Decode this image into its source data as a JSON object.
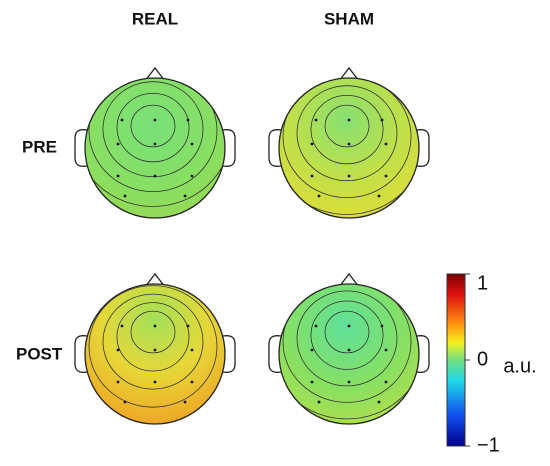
{
  "columns": [
    "REAL",
    "SHAM"
  ],
  "rows": [
    "PRE",
    "POST"
  ],
  "colorbar": {
    "label": "a.u.",
    "lim": [
      -1,
      1
    ],
    "ticks": [
      1,
      0,
      {
        "value": -1,
        "label": "−1"
      }
    ]
  }
}
